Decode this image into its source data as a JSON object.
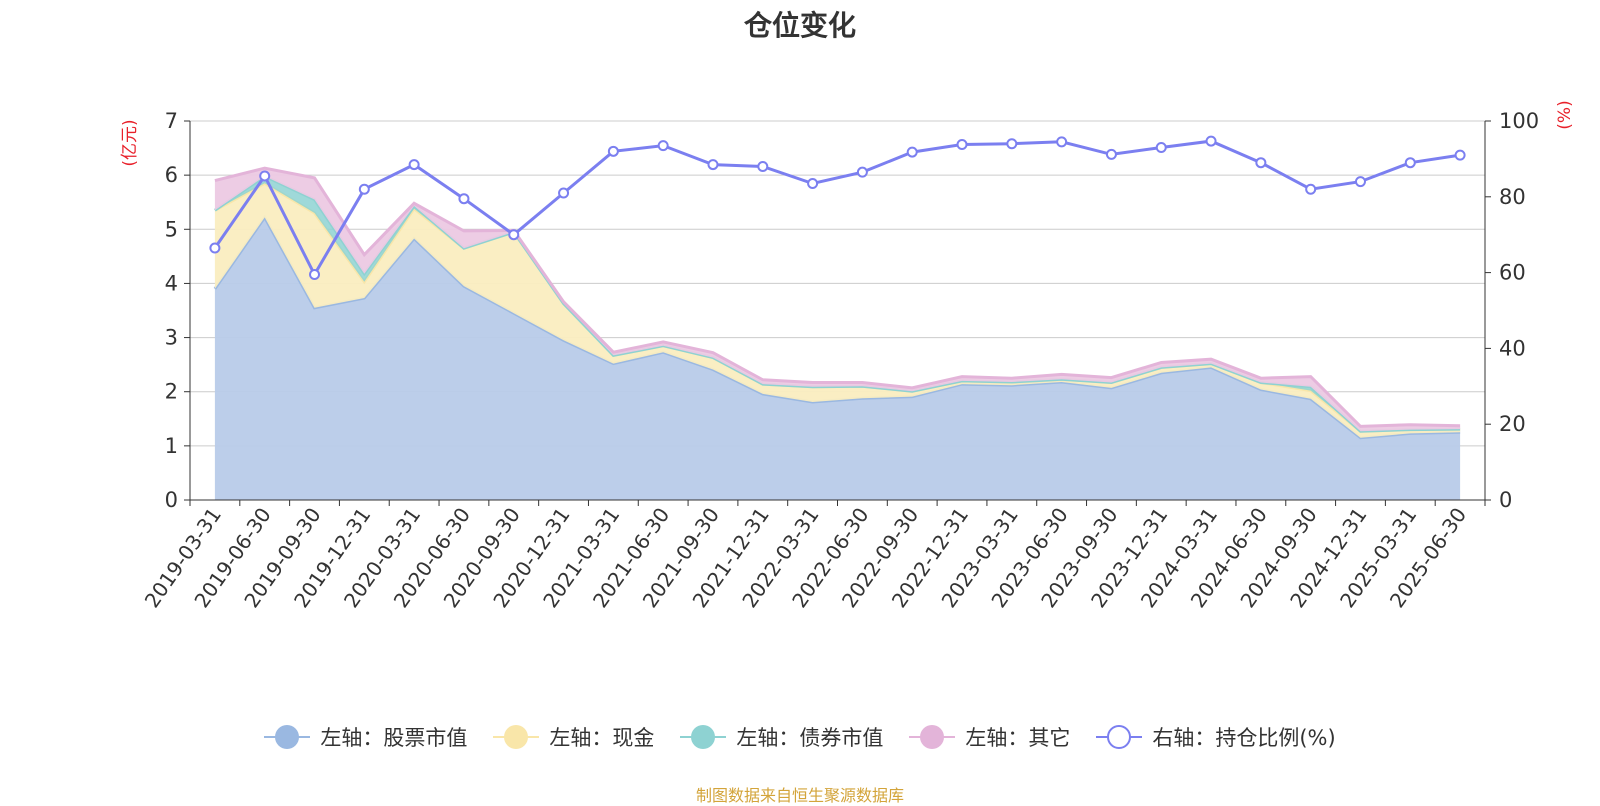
{
  "title": "仓位变化",
  "source": "制图数据来自恒生聚源数据库",
  "colors": {
    "stock": "#9ab8e1",
    "stock_fill": "#b8cbe9",
    "cash": "#f9e6a9",
    "cash_fill": "#faedc0",
    "bond": "#8ed2d2",
    "other": "#e3b4d9",
    "other_fill": "#ecc9e3",
    "ratio": "#7b7ff0",
    "axis_unit": "#e8202a",
    "source": "#d3a43a",
    "grid": "#cccccc",
    "axis": "#333333"
  },
  "legend": [
    {
      "label": "左轴：股票市值",
      "key": "stock"
    },
    {
      "label": "左轴：现金",
      "key": "cash"
    },
    {
      "label": "左轴：债券市值",
      "key": "bond"
    },
    {
      "label": "左轴：其它",
      "key": "other"
    },
    {
      "label": "右轴：持仓比例(%)",
      "key": "ratio"
    }
  ],
  "chart_data": {
    "type": "area",
    "title": "仓位变化",
    "x": [
      "2019-03-31",
      "2019-06-30",
      "2019-09-30",
      "2019-12-31",
      "2020-03-31",
      "2020-06-30",
      "2020-09-30",
      "2020-12-31",
      "2021-03-31",
      "2021-06-30",
      "2021-09-30",
      "2021-12-31",
      "2022-03-31",
      "2022-06-30",
      "2022-09-30",
      "2022-12-31",
      "2023-03-31",
      "2023-06-30",
      "2023-09-30",
      "2023-12-31",
      "2024-03-31",
      "2024-06-30",
      "2024-09-30",
      "2024-12-31",
      "2025-03-31",
      "2025-06-30"
    ],
    "y_left": {
      "unit": "(亿元)",
      "ylim": [
        0,
        7
      ],
      "ticks": [
        0,
        1,
        2,
        3,
        4,
        5,
        6,
        7
      ]
    },
    "y_right": {
      "unit": "(%)",
      "ylim": [
        0,
        100
      ],
      "ticks": [
        0,
        20,
        40,
        60,
        80,
        100
      ]
    },
    "stacked": true,
    "grid": true,
    "legend_position": "bottom",
    "series": [
      {
        "name": "左轴：股票市值",
        "axis": "left",
        "type": "area",
        "values": [
          3.9,
          5.22,
          3.55,
          3.73,
          4.83,
          3.95,
          3.45,
          2.95,
          2.52,
          2.73,
          2.41,
          1.96,
          1.81,
          1.88,
          1.91,
          2.14,
          2.12,
          2.18,
          2.07,
          2.35,
          2.45,
          2.04,
          1.87,
          1.15,
          1.23,
          1.25
        ]
      },
      {
        "name": "左轴：现金",
        "axis": "left",
        "type": "area",
        "values": [
          1.45,
          0.63,
          1.75,
          0.3,
          0.55,
          0.7,
          1.5,
          0.68,
          0.15,
          0.12,
          0.22,
          0.18,
          0.28,
          0.22,
          0.1,
          0.06,
          0.06,
          0.05,
          0.1,
          0.1,
          0.07,
          0.13,
          0.15,
          0.12,
          0.07,
          0.06
        ]
      },
      {
        "name": "左轴：债券市值",
        "axis": "left",
        "type": "area",
        "values": [
          0,
          0.13,
          0.25,
          0.15,
          0.05,
          0,
          0,
          0,
          0,
          0,
          0,
          0,
          0,
          0,
          0,
          0,
          0,
          0,
          0,
          0,
          0,
          0,
          0.07,
          0,
          0,
          0
        ]
      },
      {
        "name": "左轴：其它",
        "axis": "left",
        "type": "area",
        "values": [
          0.55,
          0.15,
          0.4,
          0.35,
          0.05,
          0.32,
          0.03,
          0.03,
          0.06,
          0.07,
          0.09,
          0.08,
          0.08,
          0.07,
          0.06,
          0.08,
          0.07,
          0.09,
          0.09,
          0.09,
          0.08,
          0.08,
          0.19,
          0.09,
          0.09,
          0.06
        ]
      },
      {
        "name": "右轴：持仓比例(%)",
        "axis": "right",
        "type": "line",
        "values": [
          66.5,
          85.5,
          59.5,
          82,
          88.5,
          79.5,
          70,
          81,
          92,
          93.5,
          88.5,
          88,
          83.5,
          86.5,
          91.8,
          93.8,
          94,
          94.5,
          91.2,
          93,
          94.7,
          89,
          82,
          84,
          89,
          91
        ]
      }
    ]
  }
}
